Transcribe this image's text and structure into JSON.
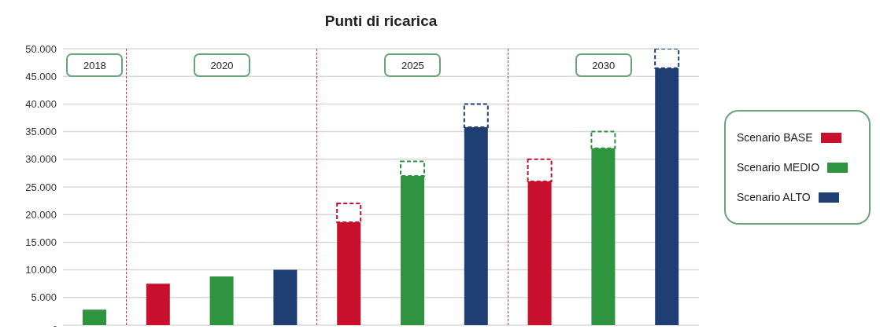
{
  "chart_data": {
    "type": "bar",
    "title": "Punti di ricarica",
    "categories": [
      null,
      null,
      null,
      null,
      null,
      null,
      null,
      null,
      null,
      null
    ],
    "stacked": true,
    "series": [
      {
        "name": "Scenario BASE",
        "color": "#c8102e",
        "values": [
          null,
          7500,
          null,
          null,
          18600,
          null,
          null,
          26000,
          null,
          null
        ]
      },
      {
        "name": "Scenario MEDIO",
        "color": "#2e9440",
        "values": [
          2800,
          null,
          8800,
          null,
          null,
          27000,
          null,
          null,
          32000,
          null
        ]
      },
      {
        "name": "Scenario ALTO",
        "color": "#1f3f74",
        "values": [
          null,
          null,
          null,
          10000,
          null,
          null,
          35800,
          null,
          null,
          46500
        ]
      },
      {
        "color": "#c8102e",
        "line_style": "dashed",
        "values": [
          null,
          null,
          null,
          null,
          3400,
          null,
          null,
          4000,
          null,
          null
        ]
      },
      {
        "color": "#2e9440",
        "line_style": "dashed",
        "values": [
          null,
          null,
          null,
          null,
          null,
          2600,
          null,
          null,
          3000,
          null
        ]
      },
      {
        "color": "#1f3f74",
        "line_style": "dashed",
        "values": [
          null,
          null,
          null,
          null,
          null,
          null,
          4200,
          null,
          null,
          3500
        ]
      }
    ],
    "ylim": [
      0,
      50000
    ],
    "yticks": [
      {
        "value": 0,
        "label": "-"
      },
      {
        "value": 5000,
        "label": "5.000"
      },
      {
        "value": 10000,
        "label": "10.000"
      },
      {
        "value": 15000,
        "label": "15.000"
      },
      {
        "value": 20000,
        "label": "20.000"
      },
      {
        "value": 25000,
        "label": "25.000"
      },
      {
        "value": 30000,
        "label": "30.000"
      },
      {
        "value": 35000,
        "label": "35.000"
      },
      {
        "value": 40000,
        "label": "40.000"
      },
      {
        "value": 45000,
        "label": "45.000"
      },
      {
        "value": 50000,
        "label": "50.000"
      }
    ],
    "grid": "y",
    "legend": "right",
    "annotations": [
      "2018",
      "2020",
      "2025",
      "2030"
    ]
  }
}
